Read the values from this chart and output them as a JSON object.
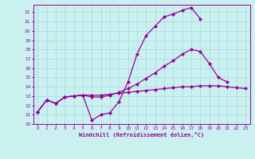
{
  "bg_color": "#caf0f0",
  "grid_color": "#aadddd",
  "line_color": "#990099",
  "marker": "D",
  "markersize": 2.0,
  "linewidth": 0.9,
  "xlabel": "Windchill (Refroidissement éolien,°C)",
  "xlim": [
    -0.5,
    23.5
  ],
  "ylim": [
    10,
    22.8
  ],
  "yticks": [
    10,
    11,
    12,
    13,
    14,
    15,
    16,
    17,
    18,
    19,
    20,
    21,
    22
  ],
  "xticks": [
    0,
    1,
    2,
    3,
    4,
    5,
    6,
    7,
    8,
    9,
    10,
    11,
    12,
    13,
    14,
    15,
    16,
    17,
    18,
    19,
    20,
    21,
    22,
    23
  ],
  "series": [
    {
      "x": [
        0,
        1,
        2,
        3,
        4,
        5,
        6,
        7,
        8,
        9,
        10,
        11,
        12,
        13,
        14,
        15,
        16,
        17,
        18
      ],
      "y": [
        11.3,
        12.6,
        12.2,
        12.9,
        13.0,
        13.1,
        10.4,
        11.0,
        11.2,
        12.4,
        14.5,
        17.5,
        19.5,
        20.5,
        21.5,
        21.8,
        22.2,
        22.5,
        21.3
      ]
    },
    {
      "x": [
        0,
        1,
        2,
        3,
        4,
        5,
        6,
        7,
        8,
        9,
        10,
        11,
        12,
        13,
        14,
        15,
        16,
        17,
        18,
        19,
        20,
        21
      ],
      "y": [
        11.3,
        12.6,
        12.2,
        12.9,
        13.0,
        13.1,
        12.9,
        12.9,
        13.1,
        13.4,
        13.8,
        14.3,
        14.9,
        15.5,
        16.2,
        16.8,
        17.5,
        18.0,
        17.8,
        16.5,
        15.0,
        14.5
      ]
    },
    {
      "x": [
        0,
        1,
        2,
        3,
        4,
        5,
        6,
        7,
        8,
        9,
        10,
        11,
        12,
        13,
        14,
        15,
        16,
        17,
        18,
        19,
        20,
        21,
        22,
        23
      ],
      "y": [
        11.3,
        12.6,
        12.2,
        12.9,
        13.0,
        13.1,
        13.1,
        13.1,
        13.2,
        13.3,
        13.4,
        13.5,
        13.6,
        13.7,
        13.8,
        13.9,
        14.0,
        14.0,
        14.1,
        14.1,
        14.1,
        14.0,
        13.9,
        13.8
      ]
    }
  ]
}
